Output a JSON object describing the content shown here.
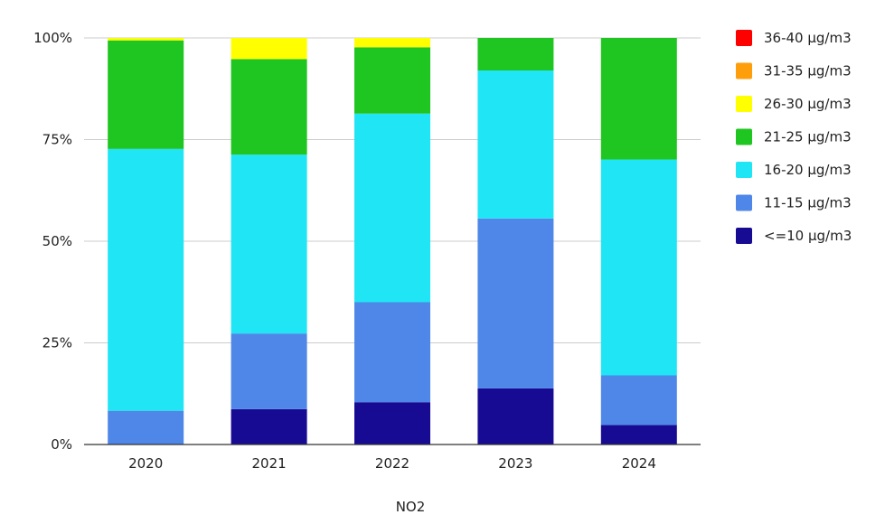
{
  "chart_data": {
    "type": "bar",
    "stacked": true,
    "normalized": true,
    "categories": [
      "2020",
      "2021",
      "2022",
      "2023",
      "2024"
    ],
    "xlabel": "NO2",
    "ylabel": "",
    "ylim": [
      0,
      100
    ],
    "y_ticks": [
      "0%",
      "25%",
      "50%",
      "75%",
      "100%"
    ],
    "y_tick_values": [
      0,
      25,
      50,
      75,
      100
    ],
    "grid": true,
    "legend_position": "right",
    "series": [
      {
        "name": "<=10 µg/m3",
        "color": "#170b93",
        "values": [
          0,
          8.7,
          10.4,
          13.8,
          4.8
        ]
      },
      {
        "name": "11-15 µg/m3",
        "color": "#4e87e8",
        "values": [
          8.3,
          18.6,
          24.6,
          41.8,
          12.2
        ]
      },
      {
        "name": "16-20 µg/m3",
        "color": "#1fe5f5",
        "values": [
          64.4,
          44.0,
          46.4,
          36.4,
          53.1
        ]
      },
      {
        "name": "21-25 µg/m3",
        "color": "#1fc520",
        "values": [
          26.7,
          23.5,
          16.3,
          8.0,
          29.9
        ]
      },
      {
        "name": "26-30 µg/m3",
        "color": "#ffff00",
        "values": [
          0.6,
          5.2,
          2.3,
          0,
          0
        ]
      },
      {
        "name": "31-35 µg/m3",
        "color": "#ff9e0b",
        "values": [
          0,
          0,
          0,
          0,
          0
        ]
      },
      {
        "name": "36-40 µg/m3",
        "color": "#ff0000",
        "values": [
          0,
          0,
          0,
          0,
          0
        ]
      }
    ]
  }
}
